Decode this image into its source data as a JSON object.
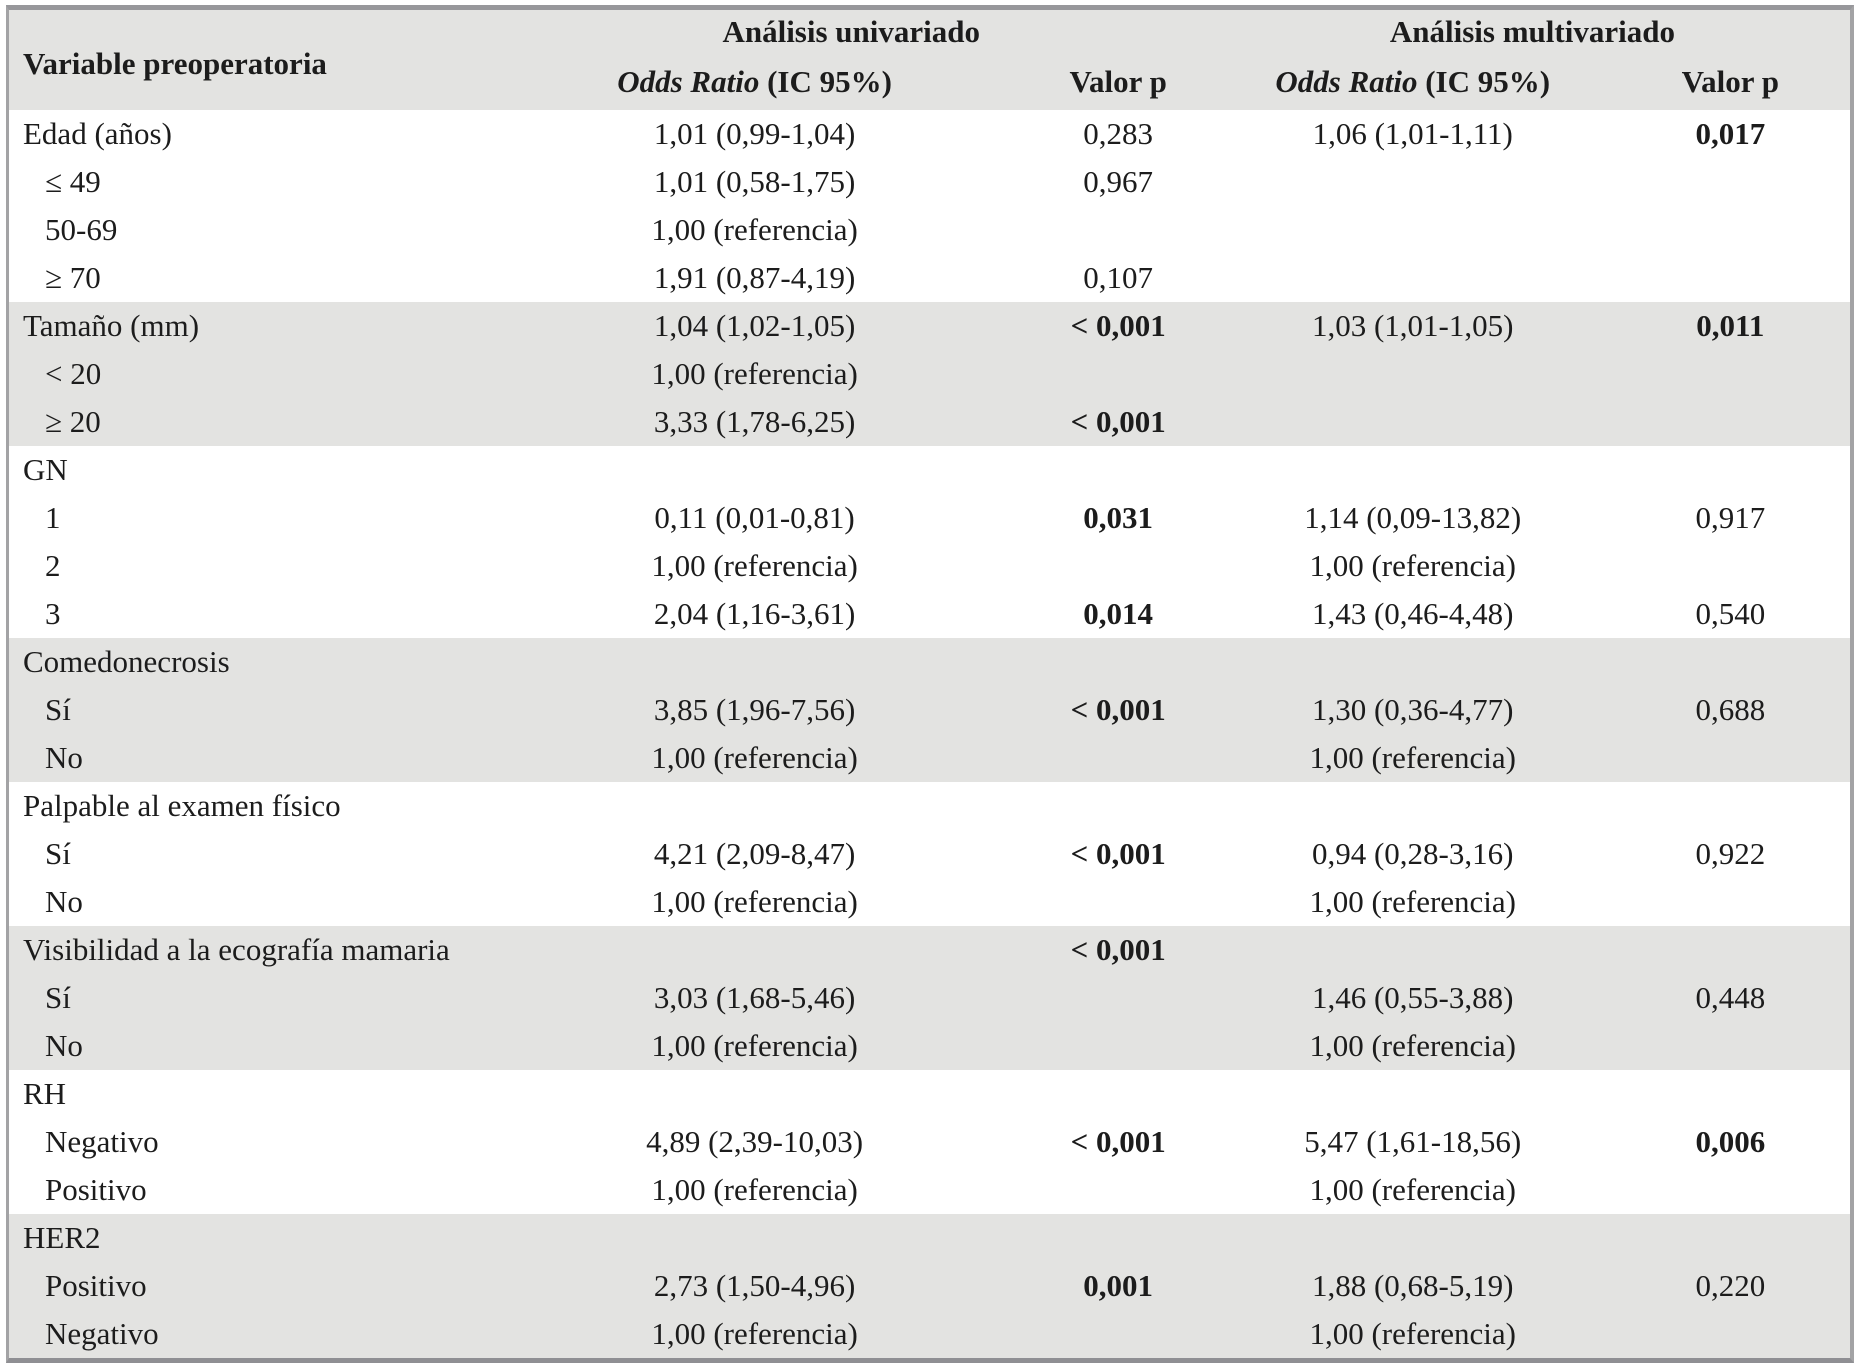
{
  "table": {
    "header": {
      "variable": "Variable preoperatoria",
      "univariate": "Análisis univariado",
      "multivariate": "Análisis multivariado",
      "odds_ratio": "Odds Ratio",
      "ic": " (IC 95%)",
      "valor_p_univariate": "Valor p",
      "valor_p_multivariate": "Valor p"
    },
    "colors": {
      "band_background": "#e3e3e1",
      "border_gray": "#97979b",
      "text": "#1c1c1c"
    },
    "groups": [
      {
        "shaded": false,
        "rows": [
          {
            "label": "Edad (años)",
            "indent": false,
            "ou": "1,01 (0,99-1,04)",
            "pu": "0,283",
            "pub": false,
            "om": "1,06 (1,01-1,11)",
            "pm": "0,017",
            "pmb": true
          },
          {
            "label": "≤ 49",
            "indent": true,
            "ou": "1,01 (0,58-1,75)",
            "pu": "0,967",
            "pub": false,
            "om": "",
            "pm": "",
            "pmb": false
          },
          {
            "label": "50-69",
            "indent": true,
            "ou": "1,00 (referencia)",
            "pu": "",
            "pub": false,
            "om": "",
            "pm": "",
            "pmb": false
          },
          {
            "label": "≥ 70",
            "indent": true,
            "ou": "1,91 (0,87-4,19)",
            "pu": "0,107",
            "pub": false,
            "om": "",
            "pm": "",
            "pmb": false
          }
        ]
      },
      {
        "shaded": true,
        "rows": [
          {
            "label": "Tamaño (mm)",
            "indent": false,
            "ou": "1,04 (1,02-1,05)",
            "pu": "< 0,001",
            "pub": true,
            "om": "1,03 (1,01-1,05)",
            "pm": "0,011",
            "pmb": true
          },
          {
            "label": "< 20",
            "indent": true,
            "ou": "1,00 (referencia)",
            "pu": "",
            "pub": false,
            "om": "",
            "pm": "",
            "pmb": false
          },
          {
            "label": "≥ 20",
            "indent": true,
            "ou": "3,33 (1,78-6,25)",
            "pu": "< 0,001",
            "pub": true,
            "om": "",
            "pm": "",
            "pmb": false
          }
        ]
      },
      {
        "shaded": false,
        "rows": [
          {
            "label": "GN",
            "indent": false,
            "ou": "",
            "pu": "",
            "pub": false,
            "om": "",
            "pm": "",
            "pmb": false
          },
          {
            "label": "1",
            "indent": true,
            "ou": "0,11 (0,01-0,81)",
            "pu": "0,031",
            "pub": true,
            "om": "1,14 (0,09-13,82)",
            "pm": "0,917",
            "pmb": false
          },
          {
            "label": "2",
            "indent": true,
            "ou": "1,00 (referencia)",
            "pu": "",
            "pub": false,
            "om": "1,00 (referencia)",
            "pm": "",
            "pmb": false
          },
          {
            "label": "3",
            "indent": true,
            "ou": "2,04 (1,16-3,61)",
            "pu": "0,014",
            "pub": true,
            "om": "1,43 (0,46-4,48)",
            "pm": "0,540",
            "pmb": false
          }
        ]
      },
      {
        "shaded": true,
        "rows": [
          {
            "label": "Comedonecrosis",
            "indent": false,
            "ou": "",
            "pu": "",
            "pub": false,
            "om": "",
            "pm": "",
            "pmb": false
          },
          {
            "label": "Sí",
            "indent": true,
            "ou": "3,85 (1,96-7,56)",
            "pu": "< 0,001",
            "pub": true,
            "om": "1,30 (0,36-4,77)",
            "pm": "0,688",
            "pmb": false
          },
          {
            "label": "No",
            "indent": true,
            "ou": "1,00 (referencia)",
            "pu": "",
            "pub": false,
            "om": "1,00 (referencia)",
            "pm": "",
            "pmb": false
          }
        ]
      },
      {
        "shaded": false,
        "rows": [
          {
            "label": "Palpable al examen físico",
            "indent": false,
            "ou": "",
            "pu": "",
            "pub": false,
            "om": "",
            "pm": "",
            "pmb": false
          },
          {
            "label": "Sí",
            "indent": true,
            "ou": "4,21 (2,09-8,47)",
            "pu": "< 0,001",
            "pub": true,
            "om": "0,94 (0,28-3,16)",
            "pm": "0,922",
            "pmb": false
          },
          {
            "label": "No",
            "indent": true,
            "ou": "1,00 (referencia)",
            "pu": "",
            "pub": false,
            "om": "1,00 (referencia)",
            "pm": "",
            "pmb": false
          }
        ]
      },
      {
        "shaded": true,
        "rows": [
          {
            "label": "Visibilidad a la ecografía mamaria",
            "indent": false,
            "ou": "",
            "pu": "< 0,001",
            "pub": true,
            "om": "",
            "pm": "",
            "pmb": false
          },
          {
            "label": "Sí",
            "indent": true,
            "ou": "3,03 (1,68-5,46)",
            "pu": "",
            "pub": false,
            "om": "1,46 (0,55-3,88)",
            "pm": "0,448",
            "pmb": false
          },
          {
            "label": "No",
            "indent": true,
            "ou": "1,00 (referencia)",
            "pu": "",
            "pub": false,
            "om": "1,00 (referencia)",
            "pm": "",
            "pmb": false
          }
        ]
      },
      {
        "shaded": false,
        "rows": [
          {
            "label": "RH",
            "indent": false,
            "ou": "",
            "pu": "",
            "pub": false,
            "om": "",
            "pm": "",
            "pmb": false
          },
          {
            "label": "Negativo",
            "indent": true,
            "ou": "4,89 (2,39-10,03)",
            "pu": "< 0,001",
            "pub": true,
            "om": "5,47 (1,61-18,56)",
            "pm": "0,006",
            "pmb": true
          },
          {
            "label": "Positivo",
            "indent": true,
            "ou": "1,00 (referencia)",
            "pu": "",
            "pub": false,
            "om": "1,00 (referencia)",
            "pm": "",
            "pmb": false
          }
        ]
      },
      {
        "shaded": true,
        "rows": [
          {
            "label": "HER2",
            "indent": false,
            "ou": "",
            "pu": "",
            "pub": false,
            "om": "",
            "pm": "",
            "pmb": false
          },
          {
            "label": "Positivo",
            "indent": true,
            "ou": "2,73 (1,50-4,96)",
            "pu": "0,001",
            "pub": true,
            "om": "1,88 (0,68-5,19)",
            "pm": "0,220",
            "pmb": false
          },
          {
            "label": "Negativo",
            "indent": true,
            "ou": "1,00 (referencia)",
            "pu": "",
            "pub": false,
            "om": "1,00 (referencia)",
            "pm": "",
            "pmb": false
          }
        ]
      }
    ]
  }
}
